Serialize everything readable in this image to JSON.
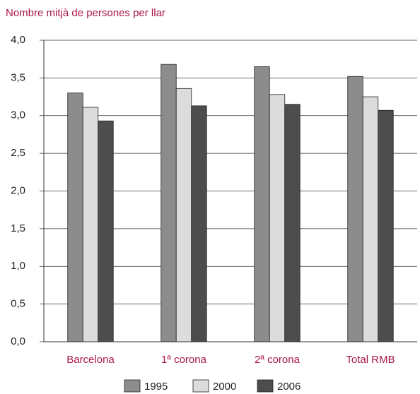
{
  "chart_data": {
    "type": "bar",
    "title": "Nombre mitjà de persones per llar",
    "categories": [
      "Barcelona",
      "1ª corona",
      "2ª corona",
      "Total RMB"
    ],
    "series": [
      {
        "name": "1995",
        "color": "#8c8c8c",
        "values": [
          3.3,
          3.68,
          3.65,
          3.52
        ]
      },
      {
        "name": "2000",
        "color": "#dcdcdc",
        "values": [
          3.11,
          3.36,
          3.28,
          3.25
        ]
      },
      {
        "name": "2006",
        "color": "#4d4d4d",
        "values": [
          2.93,
          3.13,
          3.15,
          3.07
        ]
      }
    ],
    "ylim": [
      0,
      4
    ],
    "yticks": [
      {
        "value": 0,
        "label": "0,0"
      },
      {
        "value": 0.5,
        "label": "0,5"
      },
      {
        "value": 1,
        "label": "1,0"
      },
      {
        "value": 1.5,
        "label": "1,5"
      },
      {
        "value": 2,
        "label": "2,0"
      },
      {
        "value": 2.5,
        "label": "2,5"
      },
      {
        "value": 3,
        "label": "3,0"
      },
      {
        "value": 3.5,
        "label": "3,5"
      },
      {
        "value": 4,
        "label": "4,0"
      }
    ],
    "grid": true
  }
}
